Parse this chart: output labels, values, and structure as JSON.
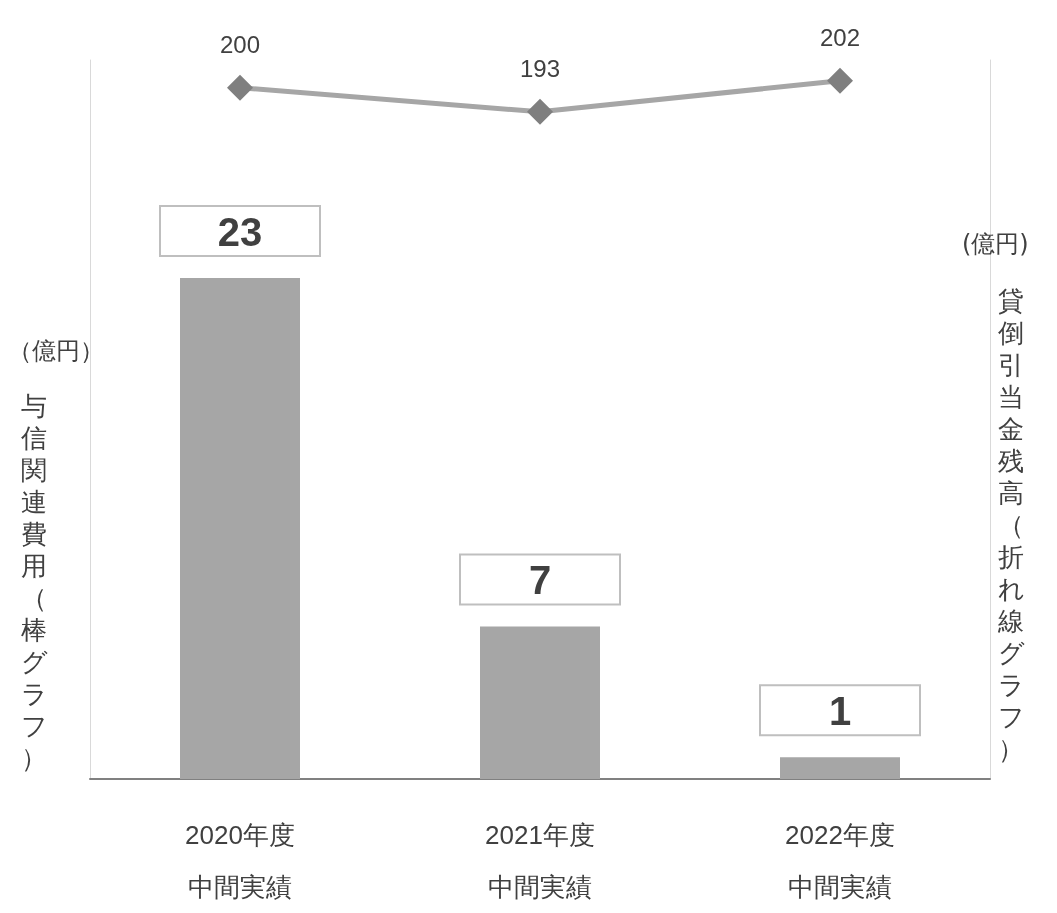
{
  "chart_data": {
    "type": "bar",
    "categories": [
      "2020年度中間実績",
      "2021年度中間実績",
      "2022年度中間実績"
    ],
    "ylabel": "与信関連費用（棒グラフ）",
    "y2label": "貸倒引当金残高（折れ線グラフ）",
    "annotations": [
      "（億円）",
      "(億円)"
    ],
    "series": [
      {
        "color": "#a6a6a6",
        "values": [
          23,
          7,
          1
        ]
      },
      {
        "type": "line",
        "axis": "y2",
        "color": "#a6a6a6",
        "marker": "diamond",
        "values": [
          200,
          193,
          202
        ]
      }
    ],
    "ylim": [
      0,
      33
    ],
    "y2lim": [
      0,
      208
    ],
    "tick_labels": "x",
    "data_labels": true,
    "grid": false
  }
}
